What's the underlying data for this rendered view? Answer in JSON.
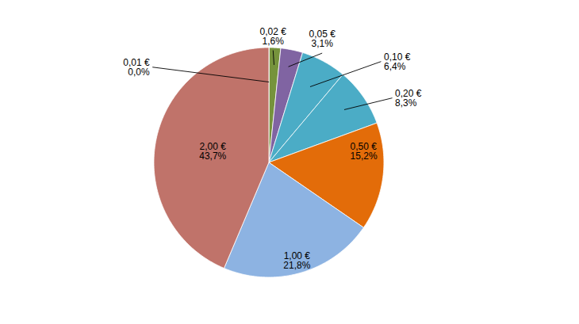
{
  "chart_data": {
    "type": "pie",
    "categories": [
      "0,01 €",
      "0,02 €",
      "0,05 €",
      "0,10 €",
      "0,20 €",
      "0,50 €",
      "1,00 €",
      "2,00 €"
    ],
    "values": [
      0.05,
      1.6,
      3.1,
      6.4,
      8.3,
      15.2,
      21.8,
      43.7
    ],
    "value_labels": [
      "0,0%",
      "1,6%",
      "3,1%",
      "6,4%",
      "8,3%",
      "15,2%",
      "21,8%",
      "43,7%"
    ],
    "colors": [
      "#c0504d",
      "#76933c",
      "#8064a2",
      "#4bacc6",
      "#4bacc6",
      "#e36c09",
      "#8db3e2",
      "#c0736a"
    ],
    "data_labels": true
  }
}
